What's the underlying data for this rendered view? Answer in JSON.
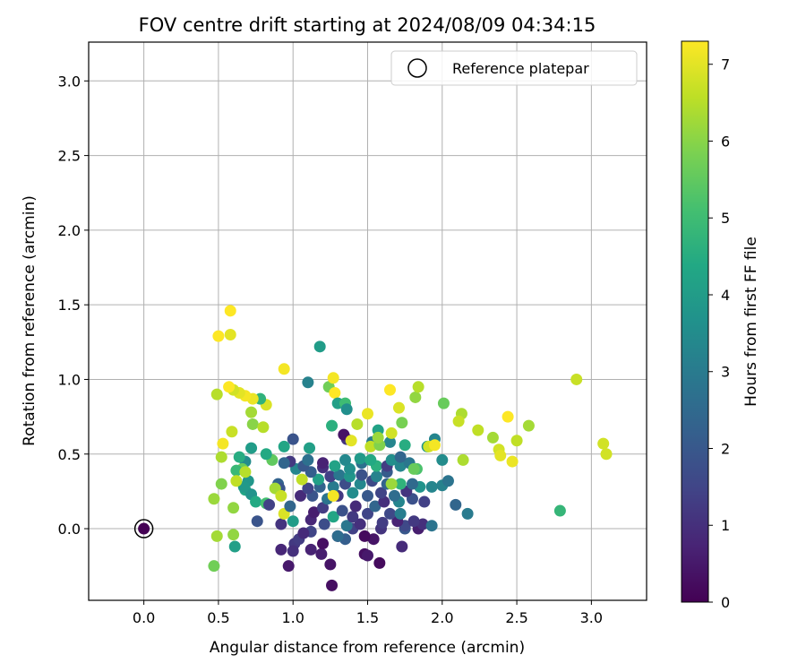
{
  "chart_data": {
    "type": "scatter",
    "title": "FOV centre drift starting at 2024/08/09 04:34:15",
    "xlabel": "Angular distance from reference (arcmin)",
    "ylabel": "Rotation from reference (arcmin)",
    "xlim": [
      -0.37,
      3.37
    ],
    "ylim": [
      -0.48,
      3.26
    ],
    "xticks": [
      0.0,
      0.5,
      1.0,
      1.5,
      2.0,
      2.5,
      3.0
    ],
    "xtick_labels": [
      "0.0",
      "0.5",
      "1.0",
      "1.5",
      "2.0",
      "2.5",
      "3.0"
    ],
    "yticks": [
      0.0,
      0.5,
      1.0,
      1.5,
      2.0,
      2.5,
      3.0
    ],
    "ytick_labels": [
      "0.0",
      "0.5",
      "1.0",
      "1.5",
      "2.0",
      "2.5",
      "3.0"
    ],
    "grid": true,
    "legend": {
      "placement": "top-right",
      "entries": [
        "Reference platepar"
      ]
    },
    "reference_point": {
      "x": 0.0,
      "y": 0.0
    },
    "colorbar": {
      "label": "Hours from first FF file",
      "range": [
        0,
        7.3
      ],
      "ticks": [
        0,
        1,
        2,
        3,
        4,
        5,
        6,
        7
      ],
      "tick_labels": [
        "0",
        "1",
        "2",
        "3",
        "4",
        "5",
        "6",
        "7"
      ],
      "colormap": "viridis"
    },
    "points": [
      {
        "x": 0.0,
        "y": 0.0,
        "h": 0.0
      },
      {
        "x": 1.26,
        "y": -0.38,
        "h": 0.3
      },
      {
        "x": 1.25,
        "y": -0.24,
        "h": 0.4
      },
      {
        "x": 0.97,
        "y": -0.25,
        "h": 0.5
      },
      {
        "x": 1.58,
        "y": -0.23,
        "h": 0.2
      },
      {
        "x": 1.48,
        "y": -0.17,
        "h": 0.3
      },
      {
        "x": 1.5,
        "y": -0.18,
        "h": 0.5
      },
      {
        "x": 1.19,
        "y": -0.17,
        "h": 0.6
      },
      {
        "x": 1.12,
        "y": -0.14,
        "h": 0.7
      },
      {
        "x": 0.92,
        "y": -0.14,
        "h": 0.8
      },
      {
        "x": 1.2,
        "y": -0.1,
        "h": 0.3
      },
      {
        "x": 1.01,
        "y": -0.1,
        "h": 1.2
      },
      {
        "x": 1.0,
        "y": -0.15,
        "h": 1.0
      },
      {
        "x": 1.54,
        "y": -0.07,
        "h": 0.4
      },
      {
        "x": 1.48,
        "y": -0.05,
        "h": 0.2
      },
      {
        "x": 1.3,
        "y": -0.05,
        "h": 0.5
      },
      {
        "x": 1.73,
        "y": -0.12,
        "h": 0.9
      },
      {
        "x": 1.04,
        "y": -0.07,
        "h": 1.3
      },
      {
        "x": 1.12,
        "y": -0.02,
        "h": 1.5
      },
      {
        "x": 1.35,
        "y": -0.07,
        "h": 2.2
      },
      {
        "x": 1.3,
        "y": -0.05,
        "h": 2.6
      },
      {
        "x": 1.07,
        "y": -0.03,
        "h": 0.9
      },
      {
        "x": 1.4,
        "y": 0.0,
        "h": 1.4
      },
      {
        "x": 1.59,
        "y": 0.0,
        "h": 1.1
      },
      {
        "x": 1.75,
        "y": 0.0,
        "h": 2.0
      },
      {
        "x": 1.84,
        "y": 0.0,
        "h": 0.6
      },
      {
        "x": 1.87,
        "y": 0.03,
        "h": 1.0
      },
      {
        "x": 1.93,
        "y": 0.02,
        "h": 2.8
      },
      {
        "x": 1.75,
        "y": 0.02,
        "h": 1.6
      },
      {
        "x": 1.7,
        "y": 0.05,
        "h": 0.7
      },
      {
        "x": 1.6,
        "y": 0.04,
        "h": 1.3
      },
      {
        "x": 1.45,
        "y": 0.03,
        "h": 1.0
      },
      {
        "x": 1.36,
        "y": 0.02,
        "h": 2.9
      },
      {
        "x": 1.21,
        "y": 0.03,
        "h": 1.7
      },
      {
        "x": 1.12,
        "y": 0.06,
        "h": 0.8
      },
      {
        "x": 0.92,
        "y": 0.03,
        "h": 1.1
      },
      {
        "x": 0.76,
        "y": 0.05,
        "h": 1.9
      },
      {
        "x": 1.0,
        "y": 0.05,
        "h": 4.0
      },
      {
        "x": 1.27,
        "y": 0.08,
        "h": 4.3
      },
      {
        "x": 1.4,
        "y": 0.08,
        "h": 1.2
      },
      {
        "x": 1.5,
        "y": 0.1,
        "h": 1.5
      },
      {
        "x": 1.65,
        "y": 0.1,
        "h": 1.6
      },
      {
        "x": 1.81,
        "y": 0.05,
        "h": 1.2
      },
      {
        "x": 1.72,
        "y": 0.1,
        "h": 3.1
      },
      {
        "x": 1.88,
        "y": 0.18,
        "h": 1.4
      },
      {
        "x": 2.09,
        "y": 0.16,
        "h": 2.4
      },
      {
        "x": 2.17,
        "y": 0.1,
        "h": 3.0
      },
      {
        "x": 1.14,
        "y": 0.11,
        "h": 0.6
      },
      {
        "x": 1.2,
        "y": 0.14,
        "h": 1.3
      },
      {
        "x": 1.33,
        "y": 0.12,
        "h": 1.8
      },
      {
        "x": 1.42,
        "y": 0.15,
        "h": 0.9
      },
      {
        "x": 1.55,
        "y": 0.15,
        "h": 2.4
      },
      {
        "x": 1.61,
        "y": 0.18,
        "h": 1.0
      },
      {
        "x": 1.71,
        "y": 0.18,
        "h": 3.3
      },
      {
        "x": 1.8,
        "y": 0.2,
        "h": 1.8
      },
      {
        "x": 1.05,
        "y": 0.22,
        "h": 0.9
      },
      {
        "x": 1.13,
        "y": 0.22,
        "h": 1.9
      },
      {
        "x": 1.23,
        "y": 0.2,
        "h": 2.8
      },
      {
        "x": 1.3,
        "y": 0.22,
        "h": 1.2
      },
      {
        "x": 1.4,
        "y": 0.24,
        "h": 3.5
      },
      {
        "x": 1.5,
        "y": 0.22,
        "h": 2.0
      },
      {
        "x": 1.59,
        "y": 0.24,
        "h": 1.5
      },
      {
        "x": 1.68,
        "y": 0.22,
        "h": 2.6
      },
      {
        "x": 1.76,
        "y": 0.25,
        "h": 1.1
      },
      {
        "x": 1.85,
        "y": 0.28,
        "h": 3.7
      },
      {
        "x": 1.93,
        "y": 0.28,
        "h": 3.3
      },
      {
        "x": 2.0,
        "y": 0.29,
        "h": 3.2
      },
      {
        "x": 2.04,
        "y": 0.32,
        "h": 2.8
      },
      {
        "x": 1.1,
        "y": 0.27,
        "h": 1.5
      },
      {
        "x": 1.18,
        "y": 0.28,
        "h": 2.3
      },
      {
        "x": 1.27,
        "y": 0.28,
        "h": 3.0
      },
      {
        "x": 1.35,
        "y": 0.3,
        "h": 1.7
      },
      {
        "x": 1.45,
        "y": 0.3,
        "h": 3.4
      },
      {
        "x": 1.53,
        "y": 0.32,
        "h": 1.6
      },
      {
        "x": 1.63,
        "y": 0.3,
        "h": 2.3
      },
      {
        "x": 1.72,
        "y": 0.3,
        "h": 4.7
      },
      {
        "x": 1.8,
        "y": 0.3,
        "h": 2.5
      },
      {
        "x": 1.17,
        "y": 0.33,
        "h": 4.1
      },
      {
        "x": 1.25,
        "y": 0.35,
        "h": 1.4
      },
      {
        "x": 1.31,
        "y": 0.36,
        "h": 2.9
      },
      {
        "x": 1.38,
        "y": 0.35,
        "h": 3.8
      },
      {
        "x": 1.46,
        "y": 0.36,
        "h": 1.8
      },
      {
        "x": 1.56,
        "y": 0.35,
        "h": 3.2
      },
      {
        "x": 1.63,
        "y": 0.38,
        "h": 2.1
      },
      {
        "x": 1.12,
        "y": 0.38,
        "h": 2.2
      },
      {
        "x": 1.2,
        "y": 0.41,
        "h": 1.0
      },
      {
        "x": 1.28,
        "y": 0.42,
        "h": 4.2
      },
      {
        "x": 1.38,
        "y": 0.4,
        "h": 3.6
      },
      {
        "x": 1.46,
        "y": 0.44,
        "h": 2.7
      },
      {
        "x": 1.56,
        "y": 0.42,
        "h": 4.6
      },
      {
        "x": 1.63,
        "y": 0.42,
        "h": 1.3
      },
      {
        "x": 1.72,
        "y": 0.42,
        "h": 3.3
      },
      {
        "x": 1.78,
        "y": 0.44,
        "h": 2.9
      },
      {
        "x": 1.83,
        "y": 0.4,
        "h": 5.2
      },
      {
        "x": 1.02,
        "y": 0.4,
        "h": 3.3
      },
      {
        "x": 1.07,
        "y": 0.42,
        "h": 2.0
      },
      {
        "x": 0.98,
        "y": 0.45,
        "h": 1.2
      },
      {
        "x": 0.94,
        "y": 0.44,
        "h": 2.4
      },
      {
        "x": 1.35,
        "y": 0.46,
        "h": 3.4
      },
      {
        "x": 1.45,
        "y": 0.47,
        "h": 3.9
      },
      {
        "x": 1.52,
        "y": 0.46,
        "h": 4.4
      },
      {
        "x": 1.66,
        "y": 0.46,
        "h": 3.6
      },
      {
        "x": 1.72,
        "y": 0.48,
        "h": 2.4
      },
      {
        "x": 1.2,
        "y": 0.44,
        "h": 0.7
      },
      {
        "x": 1.1,
        "y": 0.46,
        "h": 2.7
      },
      {
        "x": 2.0,
        "y": 0.46,
        "h": 3.5
      },
      {
        "x": 1.9,
        "y": 0.55,
        "h": 3.8
      },
      {
        "x": 1.95,
        "y": 0.6,
        "h": 3.3
      },
      {
        "x": 1.75,
        "y": 0.56,
        "h": 4.5
      },
      {
        "x": 1.65,
        "y": 0.58,
        "h": 3.3
      },
      {
        "x": 1.53,
        "y": 0.58,
        "h": 3.0
      },
      {
        "x": 1.57,
        "y": 0.66,
        "h": 4.2
      },
      {
        "x": 1.36,
        "y": 0.6,
        "h": 1.1
      },
      {
        "x": 1.34,
        "y": 0.63,
        "h": 0.4
      },
      {
        "x": 1.0,
        "y": 0.6,
        "h": 1.9
      },
      {
        "x": 1.11,
        "y": 0.54,
        "h": 4.1
      },
      {
        "x": 0.94,
        "y": 0.55,
        "h": 4.3
      },
      {
        "x": 0.86,
        "y": 0.46,
        "h": 5.5
      },
      {
        "x": 0.82,
        "y": 0.5,
        "h": 4.4
      },
      {
        "x": 0.9,
        "y": 0.3,
        "h": 2.3
      },
      {
        "x": 0.91,
        "y": 0.27,
        "h": 1.9
      },
      {
        "x": 0.72,
        "y": 0.54,
        "h": 4.0
      },
      {
        "x": 0.68,
        "y": 0.45,
        "h": 3.5
      },
      {
        "x": 0.64,
        "y": 0.48,
        "h": 4.5
      },
      {
        "x": 0.7,
        "y": 0.32,
        "h": 3.8
      },
      {
        "x": 0.66,
        "y": 0.4,
        "h": 5.6
      },
      {
        "x": 0.62,
        "y": 0.39,
        "h": 4.9
      },
      {
        "x": 0.68,
        "y": 0.26,
        "h": 4.3
      },
      {
        "x": 0.72,
        "y": 0.23,
        "h": 3.7
      },
      {
        "x": 0.67,
        "y": 0.28,
        "h": 3.9
      },
      {
        "x": 0.75,
        "y": 0.18,
        "h": 4.4
      },
      {
        "x": 0.82,
        "y": 0.17,
        "h": 5.1
      },
      {
        "x": 0.84,
        "y": 0.16,
        "h": 1.4
      },
      {
        "x": 0.88,
        "y": 0.27,
        "h": 6.3
      },
      {
        "x": 0.92,
        "y": 0.22,
        "h": 6.7
      },
      {
        "x": 0.94,
        "y": 0.1,
        "h": 6.9
      },
      {
        "x": 0.98,
        "y": 0.15,
        "h": 2.4
      },
      {
        "x": 1.06,
        "y": 0.33,
        "h": 6.6
      },
      {
        "x": 1.27,
        "y": 0.22,
        "h": 7.2
      },
      {
        "x": 0.6,
        "y": 0.14,
        "h": 6.1
      },
      {
        "x": 0.6,
        "y": -0.04,
        "h": 6.1
      },
      {
        "x": 0.61,
        "y": -0.12,
        "h": 4.1
      },
      {
        "x": 0.49,
        "y": -0.05,
        "h": 6.3
      },
      {
        "x": 0.47,
        "y": -0.25,
        "h": 5.7
      },
      {
        "x": 0.47,
        "y": 0.2,
        "h": 6.2
      },
      {
        "x": 0.52,
        "y": 0.3,
        "h": 5.9
      },
      {
        "x": 0.62,
        "y": 0.32,
        "h": 6.6
      },
      {
        "x": 0.68,
        "y": 0.38,
        "h": 6.5
      },
      {
        "x": 0.52,
        "y": 0.48,
        "h": 6.4
      },
      {
        "x": 0.53,
        "y": 0.57,
        "h": 7.2
      },
      {
        "x": 0.59,
        "y": 0.65,
        "h": 6.7
      },
      {
        "x": 0.72,
        "y": 0.78,
        "h": 6.3
      },
      {
        "x": 0.73,
        "y": 0.7,
        "h": 6.0
      },
      {
        "x": 0.8,
        "y": 0.68,
        "h": 6.5
      },
      {
        "x": 0.82,
        "y": 0.83,
        "h": 6.9
      },
      {
        "x": 0.78,
        "y": 0.87,
        "h": 4.7
      },
      {
        "x": 0.73,
        "y": 0.87,
        "h": 7.1
      },
      {
        "x": 0.68,
        "y": 0.89,
        "h": 7.2
      },
      {
        "x": 0.64,
        "y": 0.91,
        "h": 7.0
      },
      {
        "x": 0.6,
        "y": 0.93,
        "h": 6.8
      },
      {
        "x": 0.57,
        "y": 0.95,
        "h": 7.3
      },
      {
        "x": 0.49,
        "y": 0.9,
        "h": 6.5
      },
      {
        "x": 0.5,
        "y": 1.29,
        "h": 7.3
      },
      {
        "x": 0.58,
        "y": 1.3,
        "h": 7.0
      },
      {
        "x": 0.58,
        "y": 1.46,
        "h": 7.3
      },
      {
        "x": 0.94,
        "y": 1.07,
        "h": 7.2
      },
      {
        "x": 1.1,
        "y": 0.98,
        "h": 3.2
      },
      {
        "x": 1.18,
        "y": 1.22,
        "h": 4.0
      },
      {
        "x": 1.24,
        "y": 0.95,
        "h": 5.7
      },
      {
        "x": 1.27,
        "y": 1.01,
        "h": 7.2
      },
      {
        "x": 1.28,
        "y": 0.91,
        "h": 7.3
      },
      {
        "x": 1.3,
        "y": 0.84,
        "h": 4.1
      },
      {
        "x": 1.35,
        "y": 0.84,
        "h": 5.0
      },
      {
        "x": 1.36,
        "y": 0.8,
        "h": 3.6
      },
      {
        "x": 1.26,
        "y": 0.69,
        "h": 4.6
      },
      {
        "x": 1.43,
        "y": 0.7,
        "h": 6.5
      },
      {
        "x": 1.5,
        "y": 0.77,
        "h": 7.1
      },
      {
        "x": 1.39,
        "y": 0.59,
        "h": 7.0
      },
      {
        "x": 1.52,
        "y": 0.55,
        "h": 6.6
      },
      {
        "x": 1.58,
        "y": 0.56,
        "h": 5.9
      },
      {
        "x": 1.57,
        "y": 0.61,
        "h": 6.2
      },
      {
        "x": 1.66,
        "y": 0.64,
        "h": 6.8
      },
      {
        "x": 1.65,
        "y": 0.93,
        "h": 7.3
      },
      {
        "x": 1.71,
        "y": 0.81,
        "h": 6.9
      },
      {
        "x": 1.73,
        "y": 0.71,
        "h": 5.8
      },
      {
        "x": 1.82,
        "y": 0.88,
        "h": 6.1
      },
      {
        "x": 1.84,
        "y": 0.95,
        "h": 6.5
      },
      {
        "x": 1.81,
        "y": 0.4,
        "h": 5.6
      },
      {
        "x": 1.66,
        "y": 0.3,
        "h": 6.2
      },
      {
        "x": 1.91,
        "y": 0.55,
        "h": 6.8
      },
      {
        "x": 1.95,
        "y": 0.56,
        "h": 7.2
      },
      {
        "x": 2.01,
        "y": 0.84,
        "h": 5.6
      },
      {
        "x": 2.13,
        "y": 0.77,
        "h": 6.4
      },
      {
        "x": 2.11,
        "y": 0.72,
        "h": 6.7
      },
      {
        "x": 2.14,
        "y": 0.46,
        "h": 6.4
      },
      {
        "x": 2.24,
        "y": 0.66,
        "h": 6.6
      },
      {
        "x": 2.34,
        "y": 0.61,
        "h": 6.3
      },
      {
        "x": 2.38,
        "y": 0.53,
        "h": 6.8
      },
      {
        "x": 2.39,
        "y": 0.49,
        "h": 7.0
      },
      {
        "x": 2.44,
        "y": 0.75,
        "h": 7.3
      },
      {
        "x": 2.47,
        "y": 0.45,
        "h": 7.1
      },
      {
        "x": 2.5,
        "y": 0.59,
        "h": 6.6
      },
      {
        "x": 2.58,
        "y": 0.69,
        "h": 6.3
      },
      {
        "x": 2.79,
        "y": 0.12,
        "h": 4.8
      },
      {
        "x": 2.9,
        "y": 1.0,
        "h": 6.7
      },
      {
        "x": 3.08,
        "y": 0.57,
        "h": 6.8
      },
      {
        "x": 3.1,
        "y": 0.5,
        "h": 6.8
      }
    ]
  }
}
